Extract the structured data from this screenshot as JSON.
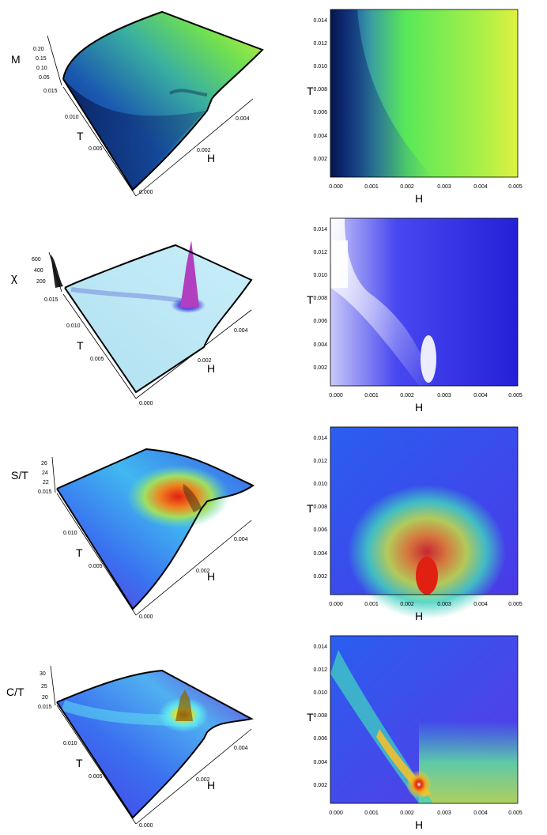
{
  "chart_data": [
    {
      "type": "surface3d",
      "zlabel": "M",
      "xlabel": "H",
      "ylabel": "T",
      "x_ticks": [
        "0.000",
        "0.002",
        "0.004"
      ],
      "y_ticks": [
        "0.005",
        "0.010",
        "0.015"
      ],
      "z_ticks": [
        "0.05",
        "0.10",
        "0.15",
        "0.20"
      ],
      "xlim": [
        0,
        0.005
      ],
      "ylim": [
        0,
        0.015
      ],
      "zlim": [
        0,
        0.2
      ],
      "colors": [
        "#0a2a70",
        "#1a50b0",
        "#2a8cc0",
        "#48c090",
        "#70e050",
        "#d8f040"
      ]
    },
    {
      "type": "heatmap",
      "xlabel": "H",
      "ylabel": "T",
      "x_ticks": [
        "0.000",
        "0.001",
        "0.002",
        "0.003",
        "0.004",
        "0.005"
      ],
      "y_ticks": [
        "0.002",
        "0.004",
        "0.006",
        "0.008",
        "0.010",
        "0.012",
        "0.014"
      ],
      "xlim": [
        0,
        0.005
      ],
      "ylim": [
        0,
        0.015
      ],
      "colors": [
        "#061650",
        "#2a6cc8",
        "#58e858",
        "#e0f040"
      ]
    },
    {
      "type": "surface3d",
      "zlabel": "χ",
      "xlabel": "H",
      "ylabel": "T",
      "x_ticks": [
        "0.000",
        "0.002",
        "0.004"
      ],
      "y_ticks": [
        "0.005",
        "0.010",
        "0.015"
      ],
      "z_ticks": [
        "200",
        "400",
        "600"
      ],
      "xlim": [
        0,
        0.005
      ],
      "ylim": [
        0,
        0.015
      ],
      "zlim": [
        0,
        600
      ],
      "colors": [
        "#b8e8f8",
        "#d0f0ff",
        "#4848e0",
        "#c040c8"
      ]
    },
    {
      "type": "heatmap",
      "xlabel": "H",
      "ylabel": "T",
      "x_ticks": [
        "0.000",
        "0.001",
        "0.002",
        "0.003",
        "0.004",
        "0.005"
      ],
      "y_ticks": [
        "0.002",
        "0.004",
        "0.006",
        "0.008",
        "0.010",
        "0.012",
        "0.014"
      ],
      "xlim": [
        0,
        0.005
      ],
      "ylim": [
        0,
        0.015
      ],
      "colors": [
        "#ffffff",
        "#9090f0",
        "#3030f0",
        "#2020d8"
      ]
    },
    {
      "type": "surface3d",
      "zlabel": "S/T",
      "xlabel": "H",
      "ylabel": "T",
      "x_ticks": [
        "0.000",
        "0.002",
        "0.004"
      ],
      "y_ticks": [
        "0.005",
        "0.010",
        "0.015"
      ],
      "z_ticks": [
        "22",
        "24",
        "26"
      ],
      "xlim": [
        0,
        0.005
      ],
      "ylim": [
        0,
        0.015
      ],
      "zlim": [
        21,
        27
      ],
      "colors": [
        "#6a30d8",
        "#3a70f0",
        "#40c0e0",
        "#b0e850",
        "#f06020",
        "#e02010"
      ]
    },
    {
      "type": "heatmap",
      "xlabel": "H",
      "ylabel": "T",
      "x_ticks": [
        "0.000",
        "0.001",
        "0.002",
        "0.003",
        "0.004",
        "0.005"
      ],
      "y_ticks": [
        "0.002",
        "0.004",
        "0.006",
        "0.008",
        "0.010",
        "0.012",
        "0.014"
      ],
      "xlim": [
        0,
        0.005
      ],
      "ylim": [
        0,
        0.015
      ],
      "colors": [
        "#7a30e0",
        "#2a5ef0",
        "#40d0c0",
        "#e8e030",
        "#e02010"
      ]
    },
    {
      "type": "surface3d",
      "zlabel": "C/T",
      "xlabel": "H",
      "ylabel": "T",
      "x_ticks": [
        "0.000",
        "0.002",
        "0.004"
      ],
      "y_ticks": [
        "0.005",
        "0.010",
        "0.015"
      ],
      "z_ticks": [
        "20",
        "25",
        "30"
      ],
      "xlim": [
        0,
        0.005
      ],
      "ylim": [
        0,
        0.015
      ],
      "zlim": [
        18,
        33
      ],
      "colors": [
        "#7030d8",
        "#3a70f0",
        "#60e8f0",
        "#e0e030",
        "#e03010"
      ]
    },
    {
      "type": "heatmap",
      "xlabel": "H",
      "ylabel": "T",
      "x_ticks": [
        "0.000",
        "0.001",
        "0.002",
        "0.003",
        "0.004",
        "0.005"
      ],
      "y_ticks": [
        "0.002",
        "0.004",
        "0.006",
        "0.008",
        "0.010",
        "0.012",
        "0.014"
      ],
      "xlim": [
        0,
        0.005
      ],
      "ylim": [
        0,
        0.015
      ],
      "colors": [
        "#7a30e0",
        "#2a5ef0",
        "#40d0c0",
        "#f0e030",
        "#e02010",
        "#ffffff"
      ]
    }
  ]
}
